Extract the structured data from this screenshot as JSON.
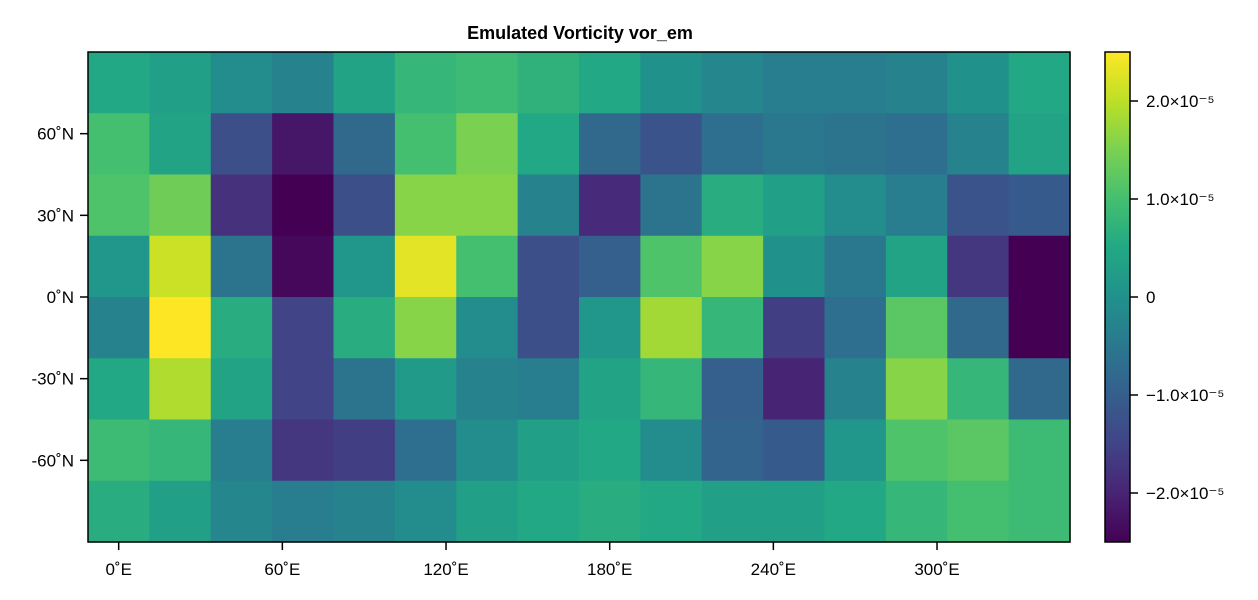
{
  "chart_data": {
    "type": "heatmap",
    "title": "Emulated Vorticity vor_em",
    "colormap": "viridis",
    "xlabel": "",
    "ylabel": "",
    "x_centers": [
      0,
      22.5,
      45,
      67.5,
      90,
      112.5,
      135,
      157.5,
      180,
      202.5,
      225,
      247.5,
      270,
      292.5,
      315,
      337.5
    ],
    "y_centers": [
      78.75,
      56.25,
      33.75,
      11.25,
      -11.25,
      -33.75,
      -56.25,
      -78.75
    ],
    "xlim": [
      -11.25,
      348.75
    ],
    "ylim": [
      -90,
      90
    ],
    "x_ticks": [
      {
        "value": 0,
        "label": "0˚E"
      },
      {
        "value": 60,
        "label": "60˚E"
      },
      {
        "value": 120,
        "label": "120˚E"
      },
      {
        "value": 180,
        "label": "180˚E"
      },
      {
        "value": 240,
        "label": "240˚E"
      },
      {
        "value": 300,
        "label": "300˚E"
      }
    ],
    "y_ticks": [
      {
        "value": 60,
        "label": "60˚N"
      },
      {
        "value": 30,
        "label": "30˚N"
      },
      {
        "value": 0,
        "label": "0˚N"
      },
      {
        "value": -30,
        "label": "-30˚N"
      },
      {
        "value": -60,
        "label": "-60˚N"
      }
    ],
    "values": [
      [
        0.5,
        0.3,
        -0.1,
        -0.3,
        0.4,
        0.8,
        0.9,
        0.7,
        0.5,
        0.0,
        -0.2,
        -0.4,
        -0.4,
        -0.3,
        0.0,
        0.5
      ],
      [
        1.0,
        0.4,
        -1.3,
        -2.2,
        -0.8,
        1.0,
        1.5,
        0.5,
        -0.8,
        -1.2,
        -0.7,
        -0.5,
        -0.6,
        -0.7,
        -0.3,
        0.4
      ],
      [
        1.1,
        1.4,
        -1.8,
        -2.5,
        -1.3,
        1.6,
        1.6,
        -0.3,
        -1.9,
        -0.6,
        0.6,
        0.3,
        -0.1,
        -0.4,
        -1.2,
        -1.1
      ],
      [
        0.1,
        2.1,
        -0.6,
        -2.4,
        0.1,
        2.3,
        1.0,
        -1.3,
        -1.0,
        1.1,
        1.6,
        0.0,
        -0.5,
        0.4,
        -1.7,
        -2.5
      ],
      [
        -0.3,
        2.5,
        0.6,
        -1.5,
        0.6,
        1.6,
        -0.1,
        -1.3,
        0.1,
        1.8,
        0.8,
        -1.6,
        -0.7,
        1.2,
        -0.8,
        -2.5
      ],
      [
        0.5,
        1.9,
        0.4,
        -1.5,
        -0.6,
        0.2,
        -0.3,
        -0.4,
        0.4,
        0.8,
        -1.0,
        -2.0,
        -0.3,
        1.6,
        0.8,
        -0.8
      ],
      [
        0.9,
        0.8,
        -0.4,
        -1.7,
        -1.6,
        -0.7,
        -0.1,
        0.3,
        0.5,
        -0.1,
        -0.9,
        -1.1,
        0.1,
        1.1,
        1.2,
        0.9
      ],
      [
        0.6,
        0.3,
        -0.2,
        -0.4,
        -0.3,
        -0.1,
        0.3,
        0.5,
        0.6,
        0.5,
        0.3,
        0.3,
        0.5,
        0.8,
        1.0,
        0.9
      ]
    ],
    "values_scale": "1e-5",
    "colorbar": {
      "range": [
        -2.5,
        2.5
      ],
      "ticks": [
        {
          "value": 2.0,
          "label": "2.0×10⁻⁵"
        },
        {
          "value": 1.0,
          "label": "1.0×10⁻⁵"
        },
        {
          "value": 0,
          "label": "0"
        },
        {
          "value": -1.0,
          "label": "−1.0×10⁻⁵"
        },
        {
          "value": -2.0,
          "label": "−2.0×10⁻⁵"
        }
      ]
    }
  }
}
